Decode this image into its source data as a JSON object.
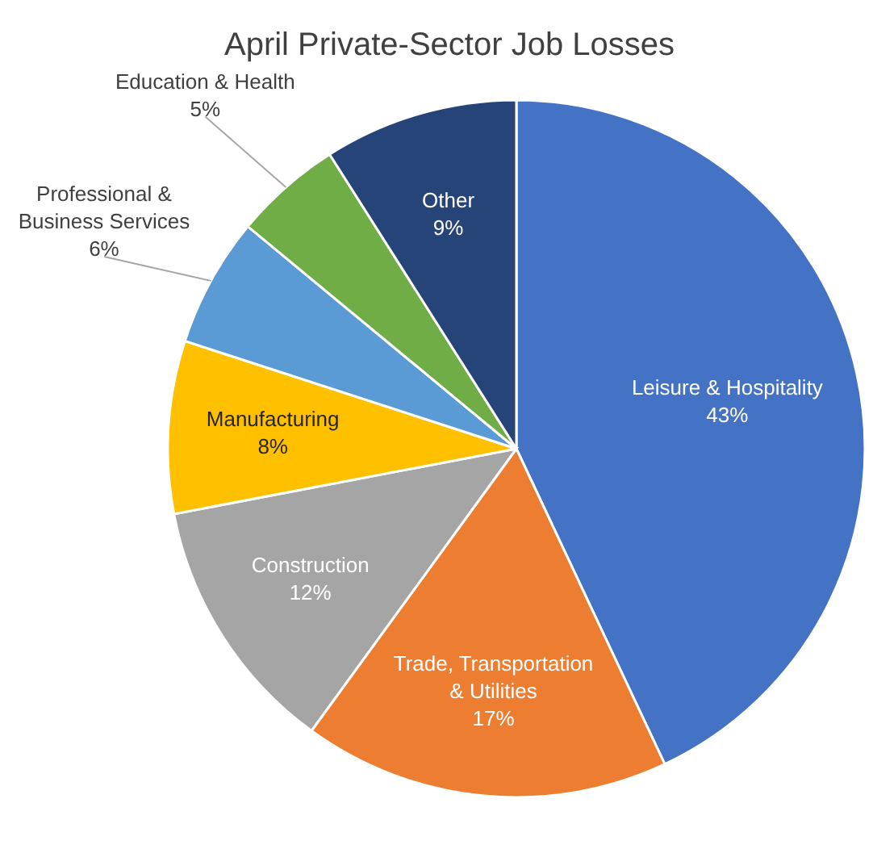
{
  "chart_data": {
    "type": "pie",
    "title": "April Private-Sector Job Losses",
    "categories": [
      "Leisure & Hospitality",
      "Trade, Transportation & Utilities",
      "Construction",
      "Manufacturing",
      "Professional & Business Services",
      "Education & Health",
      "Other"
    ],
    "values": [
      43,
      17,
      12,
      8,
      6,
      5,
      9
    ],
    "value_labels": [
      "43%",
      "17%",
      "12%",
      "8%",
      "6%",
      "5%",
      "9%"
    ],
    "colors": [
      "#4472c4",
      "#ed7d31",
      "#a5a5a5",
      "#ffc000",
      "#5b9bd5",
      "#70ad47",
      "#264478"
    ]
  }
}
